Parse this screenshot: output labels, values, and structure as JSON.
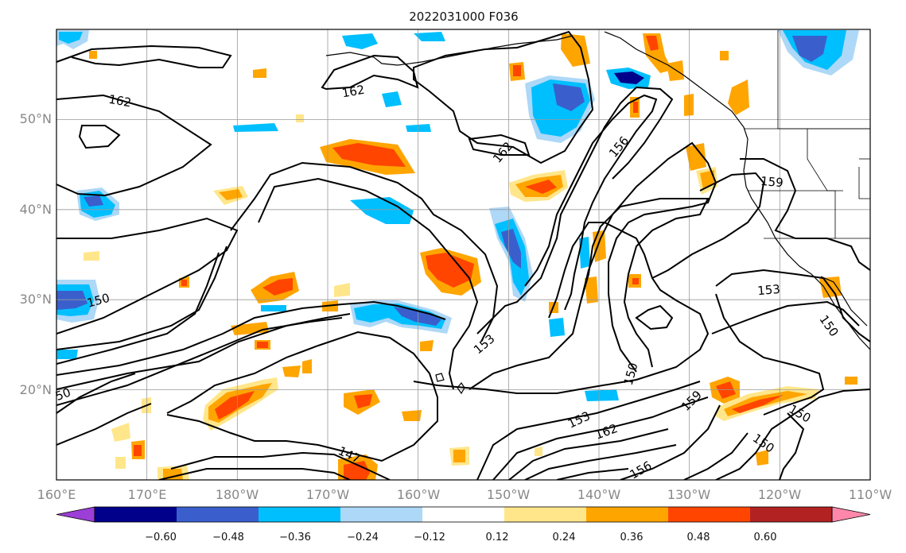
{
  "title": "2022031000 F036",
  "map": {
    "lat_labels": [
      "50°N",
      "40°N",
      "30°N",
      "20°N"
    ],
    "lon_labels": [
      "160°E",
      "170°E",
      "180°W",
      "170°W",
      "160°W",
      "150°W",
      "140°W",
      "130°W",
      "120°W",
      "110°W"
    ],
    "lat_range": [
      10,
      60
    ],
    "lon_range": [
      "160°E",
      "110°W"
    ],
    "grid": true,
    "contour_labels": [
      "162",
      "162",
      "162",
      "156",
      "159",
      "150",
      "153",
      "150",
      "153",
      "150",
      "153",
      "162",
      "156",
      "159",
      "150",
      "150",
      "147",
      "50"
    ]
  },
  "colorbar": {
    "tick_labels": [
      "−0.60",
      "−0.48",
      "−0.36",
      "−0.24",
      "−0.12",
      "0.12",
      "0.24",
      "0.36",
      "0.48",
      "0.60"
    ],
    "colors": [
      "#9b3fd6",
      "#00008b",
      "#3a5fcd",
      "#00bfff",
      "#add8f7",
      "#ffffff",
      "#ffe68a",
      "#ffa500",
      "#ff4500",
      "#b22222",
      "#ff88aa"
    ]
  }
}
